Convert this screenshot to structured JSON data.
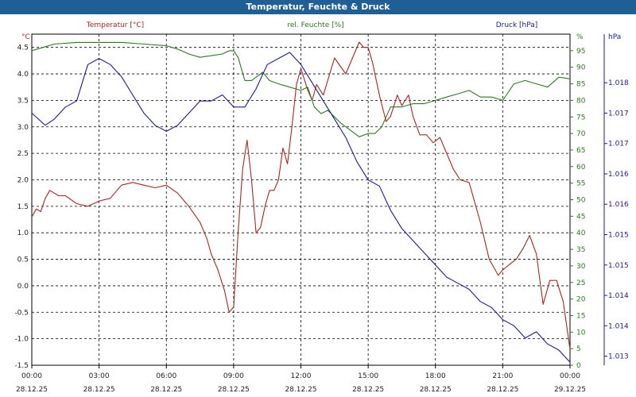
{
  "chart_data": {
    "type": "line",
    "title": "Temperatur, Feuchte & Druck",
    "colors": {
      "temperature": "#b22222",
      "humidity": "#2b7a1e",
      "pressure": "#1a1aa0",
      "grid": "#000000"
    },
    "axes": {
      "left": {
        "unit": "°C",
        "label": "Temperatur [°C]",
        "min": -1.5,
        "max": 4.75,
        "ticks": [
          "-1.5",
          "-1.0",
          "-0.5",
          "0.0",
          "0.5",
          "1.0",
          "1.5",
          "2.0",
          "2.5",
          "3.0",
          "3.5",
          "4.0",
          "4.5"
        ],
        "tick_values": [
          -1.5,
          -1.0,
          -0.5,
          0.0,
          0.5,
          1.0,
          1.5,
          2.0,
          2.5,
          3.0,
          3.5,
          4.0,
          4.5
        ]
      },
      "right_humidity": {
        "unit": "%",
        "label": "rel. Feuchte [%]",
        "min": 0,
        "max": 100,
        "ticks": [
          "0",
          "5",
          "10",
          "15",
          "20",
          "25",
          "30",
          "35",
          "40",
          "45",
          "50",
          "55",
          "60",
          "65",
          "70",
          "75",
          "80",
          "85",
          "90",
          "95"
        ],
        "tick_values": [
          0,
          5,
          10,
          15,
          20,
          25,
          30,
          35,
          40,
          45,
          50,
          55,
          60,
          65,
          70,
          75,
          80,
          85,
          90,
          95
        ]
      },
      "right_pressure": {
        "unit": "hPa",
        "label": "Druck [hPa]",
        "min": 1012.95,
        "max": 1018.4,
        "ticks": [
          "1.013",
          "1.014",
          "1.014",
          "1.015",
          "1.015",
          "1.016",
          "1.016",
          "1.017",
          "1.017",
          "1.018"
        ],
        "tick_values": [
          1013.1,
          1013.6,
          1014.1,
          1014.6,
          1015.1,
          1015.6,
          1016.1,
          1016.6,
          1017.1,
          1017.6
        ]
      },
      "x": {
        "min": 0,
        "max": 24,
        "ticks": [
          {
            "time": "00:00",
            "date": "28.12.25"
          },
          {
            "time": "03:00",
            "date": "28.12.25"
          },
          {
            "time": "06:00",
            "date": "28.12.25"
          },
          {
            "time": "09:00",
            "date": "28.12.25"
          },
          {
            "time": "12:00",
            "date": "28.12.25"
          },
          {
            "time": "15:00",
            "date": "28.12.25"
          },
          {
            "time": "18:00",
            "date": "28.12.25"
          },
          {
            "time": "21:00",
            "date": "28.12.25"
          },
          {
            "time": "00:00",
            "date": "29.12.25"
          }
        ],
        "tick_values": [
          0,
          3,
          6,
          9,
          12,
          15,
          18,
          21,
          24
        ]
      }
    },
    "series": [
      {
        "name": "Temperatur [°C]",
        "axis": "left",
        "key": "temperature",
        "x": [
          0,
          0.2,
          0.4,
          0.6,
          0.8,
          1.0,
          1.2,
          1.5,
          2.0,
          2.5,
          3.0,
          3.5,
          4.0,
          4.5,
          5.0,
          5.5,
          6.0,
          6.5,
          7.0,
          7.5,
          7.8,
          8.0,
          8.3,
          8.6,
          8.8,
          9.0,
          9.2,
          9.4,
          9.6,
          9.8,
          10.0,
          10.2,
          10.4,
          10.6,
          10.8,
          11.0,
          11.2,
          11.4,
          11.6,
          11.8,
          12.0,
          12.3,
          12.5,
          12.7,
          13.0,
          13.5,
          14.0,
          14.3,
          14.6,
          14.8,
          15.0,
          15.2,
          15.5,
          15.8,
          16.0,
          16.3,
          16.5,
          16.8,
          17.0,
          17.3,
          17.6,
          17.9,
          18.2,
          18.5,
          18.8,
          19.1,
          19.5,
          20.0,
          20.4,
          20.8,
          21.0,
          21.3,
          21.6,
          21.9,
          22.2,
          22.5,
          22.8,
          23.1,
          23.4,
          23.7,
          24.0
        ],
        "values": [
          1.3,
          1.45,
          1.4,
          1.65,
          1.8,
          1.75,
          1.7,
          1.7,
          1.55,
          1.5,
          1.6,
          1.65,
          1.9,
          1.95,
          1.9,
          1.85,
          1.9,
          1.75,
          1.5,
          1.2,
          0.9,
          0.6,
          0.3,
          -0.1,
          -0.5,
          -0.4,
          1.0,
          2.2,
          2.75,
          2.0,
          1.0,
          1.1,
          1.5,
          1.8,
          1.8,
          2.0,
          2.6,
          2.3,
          3.0,
          3.8,
          4.1,
          3.7,
          3.5,
          3.8,
          3.6,
          4.3,
          4.0,
          4.3,
          4.6,
          4.5,
          4.5,
          4.2,
          3.6,
          3.1,
          3.2,
          3.6,
          3.4,
          3.6,
          3.2,
          2.85,
          2.85,
          2.7,
          2.8,
          2.5,
          2.2,
          2.0,
          1.95,
          1.2,
          0.5,
          0.2,
          0.3,
          0.4,
          0.5,
          0.7,
          0.95,
          0.6,
          -0.35,
          0.1,
          0.1,
          -0.3,
          -1.2
        ]
      },
      {
        "name": "rel. Feuchte [%]",
        "axis": "right_humidity",
        "key": "humidity",
        "x": [
          0,
          0.5,
          1.0,
          2.0,
          3.0,
          4.0,
          5.0,
          6.0,
          6.5,
          7.0,
          7.5,
          8.0,
          8.5,
          8.8,
          9.0,
          9.2,
          9.5,
          9.8,
          10.0,
          10.3,
          10.6,
          11.0,
          11.5,
          12.0,
          12.3,
          12.6,
          12.9,
          13.2,
          13.5,
          13.8,
          14.2,
          14.6,
          15.0,
          15.3,
          15.6,
          16.0,
          16.5,
          17.0,
          17.5,
          18.0,
          18.5,
          19.0,
          19.5,
          20.0,
          20.5,
          21.0,
          21.5,
          22.0,
          22.5,
          23.0,
          23.5,
          24.0
        ],
        "values": [
          95,
          96,
          97,
          97.5,
          97.5,
          97.5,
          97,
          96.5,
          95.5,
          94,
          93,
          93.5,
          94,
          95,
          95,
          93,
          86,
          86,
          87,
          88.5,
          86,
          85,
          84,
          83,
          84,
          78,
          76,
          77,
          75,
          73,
          71,
          69,
          70,
          70,
          72,
          78,
          78,
          79,
          79,
          80,
          81,
          82,
          83,
          81,
          81,
          80,
          85,
          86,
          85,
          84,
          87,
          86.5
        ]
      },
      {
        "name": "Druck [hPa]",
        "axis": "right_pressure",
        "key": "pressure",
        "x": [
          0,
          0.3,
          0.6,
          1.0,
          1.5,
          2.0,
          2.5,
          3.0,
          3.5,
          4.0,
          4.5,
          5.0,
          5.5,
          6.0,
          6.5,
          7.0,
          7.5,
          8.0,
          8.5,
          9.0,
          9.5,
          10.0,
          10.5,
          11.0,
          11.5,
          12.0,
          12.5,
          13.0,
          13.5,
          14.0,
          14.5,
          15.0,
          15.5,
          16.0,
          16.5,
          17.0,
          17.5,
          18.0,
          18.5,
          19.0,
          19.5,
          20.0,
          20.5,
          21.0,
          21.5,
          22.0,
          22.5,
          23.0,
          23.5,
          24.0
        ],
        "values": [
          1017.1,
          1017.0,
          1016.9,
          1017.0,
          1017.2,
          1017.3,
          1017.9,
          1018.0,
          1017.9,
          1017.7,
          1017.4,
          1017.1,
          1016.9,
          1016.8,
          1016.9,
          1017.1,
          1017.3,
          1017.3,
          1017.4,
          1017.2,
          1017.2,
          1017.5,
          1017.9,
          1018.0,
          1018.1,
          1017.9,
          1017.6,
          1017.3,
          1017.0,
          1016.7,
          1016.3,
          1016.0,
          1015.9,
          1015.5,
          1015.2,
          1015.0,
          1014.8,
          1014.6,
          1014.4,
          1014.3,
          1014.2,
          1014.0,
          1013.9,
          1013.7,
          1013.6,
          1013.4,
          1013.5,
          1013.3,
          1013.2,
          1013.0
        ]
      }
    ]
  }
}
